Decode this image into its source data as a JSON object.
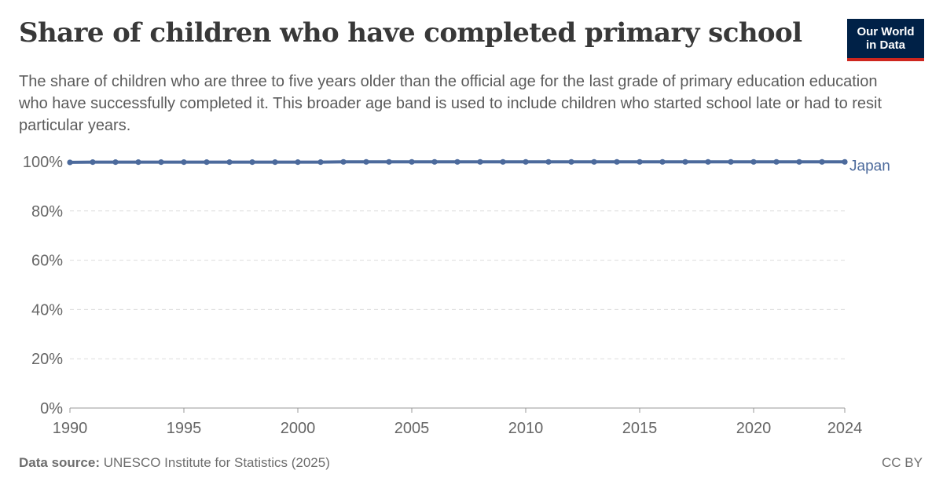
{
  "header": {
    "title": "Share of children who have completed primary school",
    "subtitle": "The share of children who are three to five years older than the official age for the last grade of primary education education who have successfully completed it. This broader age band is used to include children who started school late or had to resit particular years.",
    "logo_line1": "Our World",
    "logo_line2": "in Data"
  },
  "footer": {
    "source_label": "Data source:",
    "source_text": "UNESCO Institute for Statistics (2025)",
    "license": "CC BY"
  },
  "colors": {
    "series": "#4c6a9c",
    "grid": "#dddddd",
    "axis": "#999999",
    "logo_bg": "#002147",
    "logo_accent": "#ce261e"
  },
  "chart_data": {
    "type": "line",
    "x_ticks": [
      1990,
      1995,
      2000,
      2005,
      2010,
      2015,
      2020,
      2024
    ],
    "x_tick_labels": [
      "1990",
      "1995",
      "2000",
      "2005",
      "2010",
      "2015",
      "2020",
      "2024"
    ],
    "y_ticks": [
      0,
      20,
      40,
      60,
      80,
      100
    ],
    "y_tick_labels": [
      "0%",
      "20%",
      "40%",
      "60%",
      "80%",
      "100%"
    ],
    "xlim": [
      1990,
      2024
    ],
    "ylim": [
      0,
      100
    ],
    "grid": "horizontal dashed",
    "series": [
      {
        "name": "Japan",
        "color": "#4c6a9c",
        "x": [
          1990,
          1991,
          1992,
          1993,
          1994,
          1995,
          1996,
          1997,
          1998,
          1999,
          2000,
          2001,
          2002,
          2003,
          2004,
          2005,
          2006,
          2007,
          2008,
          2009,
          2010,
          2011,
          2012,
          2013,
          2014,
          2015,
          2016,
          2017,
          2018,
          2019,
          2020,
          2021,
          2022,
          2023,
          2024
        ],
        "y": [
          99.7,
          99.8,
          99.8,
          99.8,
          99.8,
          99.8,
          99.8,
          99.8,
          99.8,
          99.8,
          99.8,
          99.8,
          99.9,
          99.9,
          99.9,
          99.9,
          99.9,
          99.9,
          99.9,
          99.9,
          99.9,
          99.9,
          99.9,
          99.9,
          99.9,
          99.9,
          99.9,
          99.9,
          99.9,
          99.9,
          99.9,
          99.9,
          99.9,
          99.9,
          99.9
        ]
      }
    ]
  }
}
